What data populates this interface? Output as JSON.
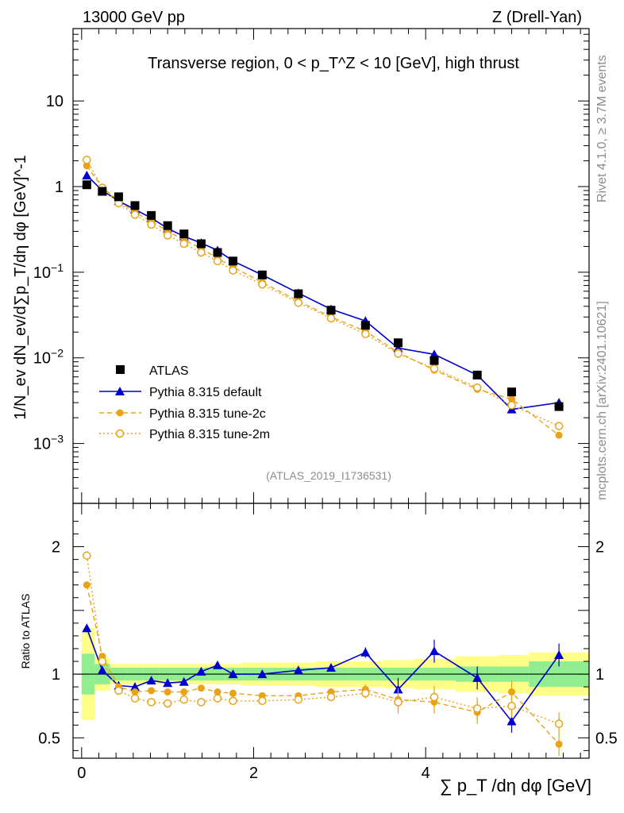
{
  "header": {
    "left": "13000 GeV pp",
    "right": "Z (Drell-Yan)"
  },
  "side": {
    "rivet": "Rivet 4.1.0, ≥ 3.7M events",
    "mcplots": "mcplots.cern.ch [arXiv:2401.10621]"
  },
  "watermark": "(ATLAS_2019_I1736531)",
  "chart_data": [
    {
      "type": "scatter",
      "title": "Transverse region, 0 < p_T^Z < 10 [GeV], high thrust",
      "ylabel": "1/N_ev dN_ev/d∑p_T/dη dφ [GeV]^-1",
      "xlabel": "∑ p_T /dη dφ [GeV]",
      "yscale": "log",
      "xlim": [
        -0.1,
        5.9
      ],
      "ylim": [
        0.0002,
        70
      ],
      "yticks": [
        {
          "v": 0.001,
          "b": "10",
          "e": "−3"
        },
        {
          "v": 0.01,
          "b": "10",
          "e": "−2"
        },
        {
          "v": 0.1,
          "b": "10",
          "e": "−1"
        },
        {
          "v": 1,
          "b": "1",
          "e": ""
        },
        {
          "v": 10,
          "b": "10",
          "e": ""
        }
      ],
      "x": [
        0.06,
        0.24,
        0.43,
        0.62,
        0.81,
        1.0,
        1.19,
        1.39,
        1.58,
        1.76,
        2.1,
        2.52,
        2.9,
        3.3,
        3.68,
        4.1,
        4.6,
        5.0,
        5.55
      ],
      "series": [
        {
          "name": "ATLAS",
          "color": "#000000",
          "values": [
            1.05,
            0.88,
            0.76,
            0.6,
            0.46,
            0.35,
            0.28,
            0.215,
            0.17,
            0.135,
            0.093,
            0.056,
            0.036,
            0.024,
            0.015,
            0.0093,
            0.0063,
            0.004,
            0.0027
          ]
        },
        {
          "name": "Pythia 8.315 default",
          "color": "#0000cc",
          "values": [
            1.35,
            0.9,
            0.68,
            0.54,
            0.43,
            0.325,
            0.262,
            0.22,
            0.18,
            0.135,
            0.093,
            0.057,
            0.037,
            0.027,
            0.013,
            0.011,
            0.0063,
            0.0025,
            0.003
          ]
        },
        {
          "name": "Pythia 8.315 tune-2c",
          "color": "#e8a317",
          "values": [
            1.75,
            0.98,
            0.68,
            0.5,
            0.395,
            0.3,
            0.24,
            0.19,
            0.145,
            0.115,
            0.076,
            0.046,
            0.03,
            0.0205,
            0.0116,
            0.0072,
            0.0043,
            0.0033,
            0.00125
          ]
        },
        {
          "name": "Pythia 8.315 tune-2m",
          "color": "#e8a317",
          "values": [
            2.05,
            0.97,
            0.64,
            0.47,
            0.36,
            0.27,
            0.215,
            0.17,
            0.135,
            0.105,
            0.072,
            0.044,
            0.029,
            0.019,
            0.0112,
            0.0075,
            0.0045,
            0.0028,
            0.0016
          ]
        }
      ]
    },
    {
      "type": "scatter",
      "ylabel": "Ratio to ATLAS",
      "xlim": [
        -0.1,
        5.9
      ],
      "ylim": [
        0.34,
        2.34
      ],
      "yticks": [
        0.5,
        1,
        2
      ],
      "xticks": [
        0,
        2,
        4
      ],
      "series": [
        {
          "name": "Pythia 8.315 default",
          "values": [
            1.36,
            1.03,
            0.91,
            0.9,
            0.95,
            0.93,
            0.94,
            1.02,
            1.07,
            1.0,
            1.0,
            1.03,
            1.05,
            1.17,
            0.88,
            1.18,
            0.97,
            0.63,
            1.15
          ]
        },
        {
          "name": "Pythia 8.315 tune-2c",
          "values": [
            1.7,
            1.14,
            0.9,
            0.86,
            0.87,
            0.86,
            0.86,
            0.89,
            0.86,
            0.85,
            0.83,
            0.83,
            0.86,
            0.88,
            0.8,
            0.78,
            0.7,
            0.86,
            0.45
          ]
        },
        {
          "name": "Pythia 8.315 tune-2m",
          "values": [
            1.93,
            1.1,
            0.87,
            0.81,
            0.78,
            0.77,
            0.8,
            0.78,
            0.81,
            0.79,
            0.79,
            0.8,
            0.82,
            0.85,
            0.78,
            0.82,
            0.73,
            0.75,
            0.61
          ]
        }
      ],
      "bands": {
        "x_edges": [
          0,
          0.15,
          0.33,
          0.52,
          0.71,
          0.9,
          1.1,
          1.29,
          1.48,
          1.67,
          1.86,
          2.33,
          2.72,
          3.1,
          3.5,
          3.87,
          4.35,
          4.85,
          5.2,
          5.9
        ],
        "green_half": [
          0.16,
          0.08,
          0.05,
          0.05,
          0.05,
          0.05,
          0.05,
          0.05,
          0.05,
          0.05,
          0.05,
          0.05,
          0.05,
          0.05,
          0.05,
          0.05,
          0.06,
          0.06,
          0.1
        ],
        "yellow_half": [
          0.36,
          0.13,
          0.08,
          0.08,
          0.08,
          0.08,
          0.08,
          0.08,
          0.08,
          0.08,
          0.09,
          0.09,
          0.1,
          0.1,
          0.11,
          0.12,
          0.14,
          0.15,
          0.17
        ]
      }
    }
  ]
}
